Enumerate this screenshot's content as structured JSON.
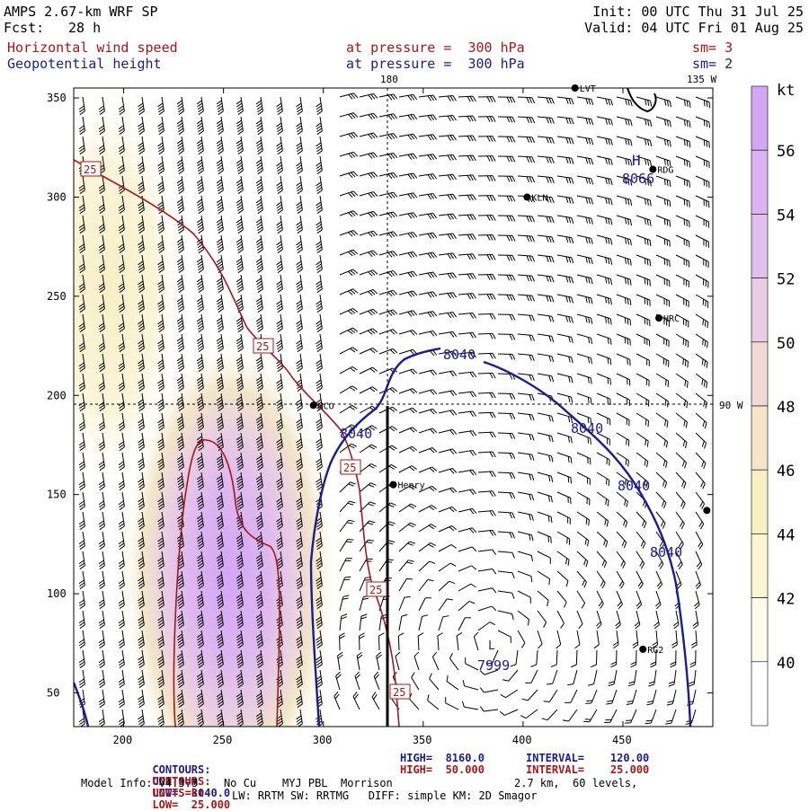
{
  "header": {
    "model": "AMPS 2.67-km WRF SP",
    "fcst_label": "Fcst:",
    "fcst_value": "28 h",
    "init": "Init: 00 UTC Thu 31 Jul 25",
    "valid": "Valid: 04 UTC Fri 01 Aug 25",
    "field1": "Horizontal wind speed",
    "field1_level": "at pressure =  300 hPa",
    "field1_sm": "sm= 3",
    "field2": "Geopotential height",
    "field2_level": "at pressure =  300 hPa",
    "field2_sm": "sm= 2"
  },
  "footer": {
    "c1_label": "CONTOURS:",
    "c1_units": "UNITS=m",
    "c1_low": "LOW=  8040.0",
    "c1_high": "HIGH=  8160.0",
    "c1_interval": "INTERVAL=    120.00",
    "c2_label": "CONTOURS:",
    "c2_units": "UNITS=kt",
    "c2_low": "LOW=  25.000",
    "c2_high": "HIGH=  50.000",
    "c2_interval": "INTERVAL=    25.000",
    "model_info": "Model Info: V4.3.3    No Cu    MYJ PBL  Morrison",
    "grid_info": "2.7 km,  60 levels,",
    "phys_info": "LW: RRTM SW: RRTMG   DIFF: simple KM: 2D Smagor"
  },
  "chart_data": {
    "type": "heatmap",
    "title": "AMPS 2.67-km WRF SP",
    "xlim": [
      175,
      495
    ],
    "ylim": [
      33,
      355
    ],
    "x_ticks": [
      "200",
      "250",
      "300",
      "350",
      "400",
      "450"
    ],
    "x_tick_values": [
      200,
      250,
      300,
      350,
      400,
      450
    ],
    "y_ticks": [
      "50",
      "100",
      "150",
      "200",
      "250",
      "300",
      "350"
    ],
    "y_tick_values": [
      50,
      100,
      150,
      200,
      250,
      300,
      350
    ],
    "meridians": [
      {
        "label": "180",
        "x": 334
      },
      {
        "label": "135 W",
        "x": 494
      }
    ],
    "parallels": [
      {
        "label": "90 W",
        "y": 195
      }
    ],
    "colorbar": {
      "unit": "kt",
      "levels": [
        38,
        40,
        42,
        44,
        46,
        48,
        50,
        52,
        54,
        56,
        58
      ],
      "labels": [
        "40",
        "42",
        "44",
        "46",
        "48",
        "50",
        "52",
        "54",
        "56"
      ],
      "colors": [
        "#ffffff",
        "#fcfaea",
        "#faf6d2",
        "#f7f0c4",
        "#f3e6c8",
        "#efdad6",
        "#e9cde4",
        "#e2c0ee",
        "#dbb3f2",
        "#d3a6f4"
      ]
    },
    "wind_speed_max": {
      "x": 245,
      "y": 65,
      "value": 56
    },
    "wind_contour_labels": [
      "25",
      "25",
      "25",
      "25",
      "25"
    ],
    "height_contour_labels": [
      "8040",
      "8040",
      "8040",
      "8040",
      "8040"
    ],
    "height_extrema": [
      {
        "type": "H",
        "label": "8066",
        "x": 458,
        "y": 318
      },
      {
        "type": "L",
        "label": "7999",
        "x": 385,
        "y": 73
      }
    ],
    "stations": [
      {
        "name": "LVT",
        "x": 426,
        "y": 355
      },
      {
        "name": "RDG",
        "x": 465,
        "y": 314
      },
      {
        "name": "KLN",
        "x": 402,
        "y": 300
      },
      {
        "name": "HRC",
        "x": 468,
        "y": 239
      },
      {
        "name": "NCO",
        "x": 295,
        "y": 195
      },
      {
        "name": "Henry",
        "x": 335,
        "y": 155
      },
      {
        "name": "RG2",
        "x": 460,
        "y": 72
      },
      {
        "name": "",
        "x": 492,
        "y": 142
      }
    ]
  },
  "colors": {
    "wind_contour": "#a51818",
    "height_contour": "#1c1c8c",
    "axis": "#000000"
  }
}
